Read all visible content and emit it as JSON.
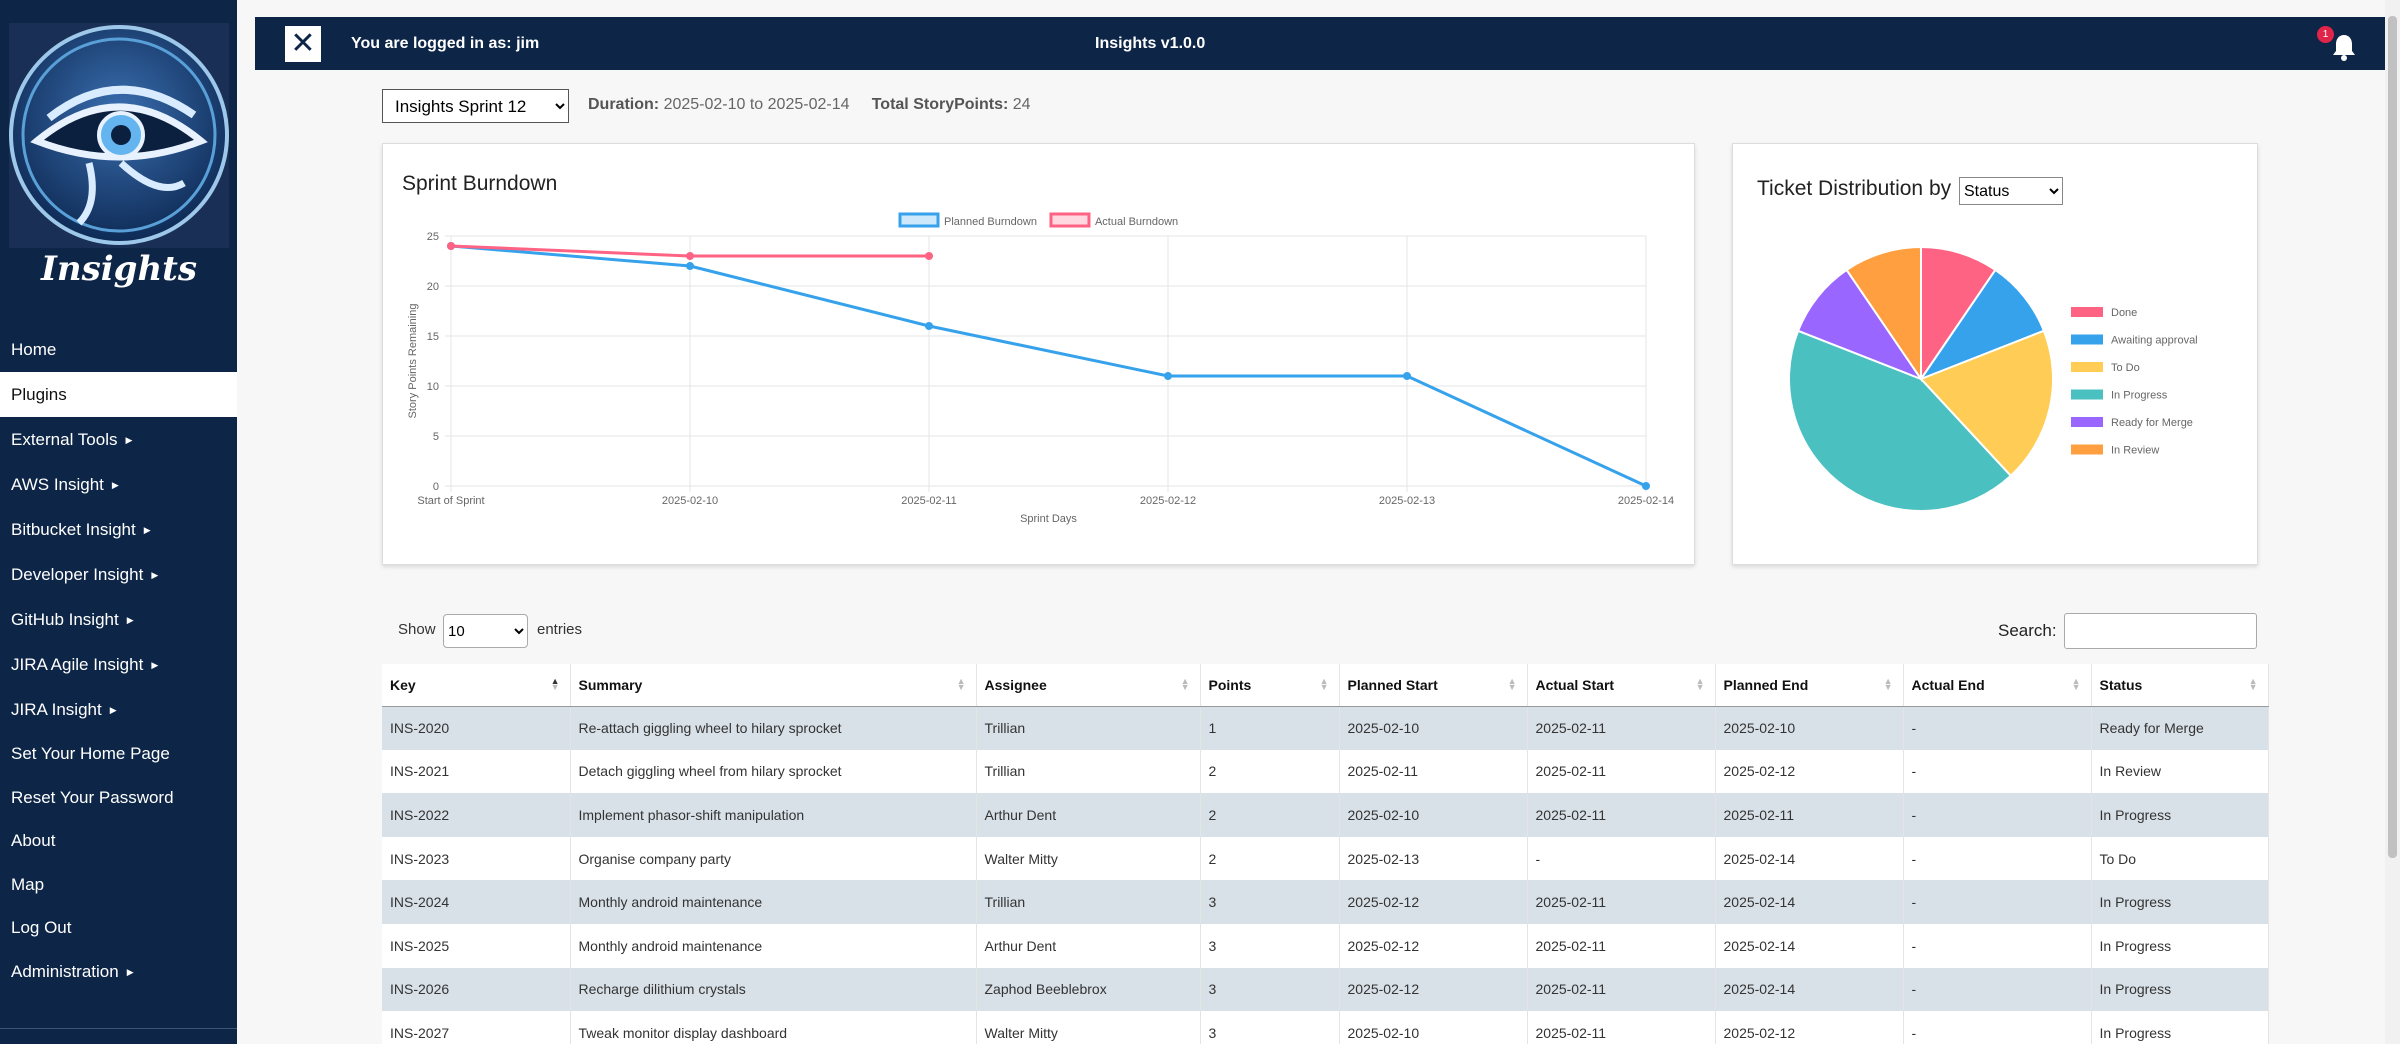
{
  "header": {
    "logged_in_text": "You are logged in as: jim",
    "app_title": "Insights v1.0.0",
    "notification_count": "1"
  },
  "sidebar": {
    "logo_text": "Insights",
    "items": [
      {
        "label": "Home",
        "submenu": false,
        "active": false
      },
      {
        "label": "Plugins",
        "submenu": false,
        "active": true
      },
      {
        "label": "External Tools",
        "submenu": true,
        "active": false
      },
      {
        "label": "AWS Insight",
        "submenu": true,
        "active": false
      },
      {
        "label": "Bitbucket Insight",
        "submenu": true,
        "active": false
      },
      {
        "label": "Developer Insight",
        "submenu": true,
        "active": false
      },
      {
        "label": "GitHub Insight",
        "submenu": true,
        "active": false
      },
      {
        "label": "JIRA Agile Insight",
        "submenu": true,
        "active": false
      },
      {
        "label": "JIRA Insight",
        "submenu": true,
        "active": false
      },
      {
        "label": "Set Your Home Page",
        "submenu": false,
        "active": false
      },
      {
        "label": "Reset Your Password",
        "submenu": false,
        "active": false
      },
      {
        "label": "About",
        "submenu": false,
        "active": false
      },
      {
        "label": "Map",
        "submenu": false,
        "active": false
      },
      {
        "label": "Log Out",
        "submenu": false,
        "active": false
      },
      {
        "label": "Administration",
        "submenu": true,
        "active": false
      }
    ]
  },
  "sprint": {
    "selected": "Insights Sprint 12",
    "duration_label": "Duration:",
    "duration_value": "2025-02-10 to 2025-02-14",
    "points_label": "Total StoryPoints:",
    "points_value": "24"
  },
  "burndown": {
    "title": "Sprint Burndown",
    "chart_data": {
      "type": "line",
      "x": [
        "Start of Sprint",
        "2025-02-10",
        "2025-02-11",
        "2025-02-12",
        "2025-02-13",
        "2025-02-14"
      ],
      "series": [
        {
          "name": "Planned Burndown",
          "color": "#36a2eb",
          "values": [
            24,
            22,
            16,
            11,
            11,
            0
          ]
        },
        {
          "name": "Actual Burndown",
          "color": "#ff6384",
          "values": [
            24,
            23,
            23,
            null,
            null,
            null
          ]
        }
      ],
      "xlabel": "Sprint Days",
      "ylabel": "Story Points Remaining",
      "ylim": [
        0,
        25
      ],
      "yticks": [
        0,
        5,
        10,
        15,
        20,
        25
      ],
      "grid": true,
      "legend": "top"
    }
  },
  "distribution": {
    "title": "Ticket Distribution by",
    "group_by": "Status",
    "chart_data": {
      "type": "pie",
      "categories": [
        "Done",
        "Awaiting approval",
        "To Do",
        "In Progress",
        "Ready for Merge",
        "In Review"
      ],
      "values": [
        2,
        2,
        4,
        9,
        2,
        2
      ],
      "colors": [
        "#ff6384",
        "#36a2eb",
        "#ffcd56",
        "#4bc0c0",
        "#9966ff",
        "#ff9f40"
      ],
      "legend": "right"
    }
  },
  "table_controls": {
    "show_label": "Show",
    "entries_value": "10",
    "entries_label": "entries",
    "search_label": "Search:"
  },
  "table": {
    "columns": [
      "Key",
      "Summary",
      "Assignee",
      "Points",
      "Planned Start",
      "Actual Start",
      "Planned End",
      "Actual End",
      "Status"
    ],
    "rows": [
      [
        "INS-2020",
        "Re-attach giggling wheel to hilary sprocket",
        "Trillian",
        "1",
        "2025-02-10",
        "2025-02-11",
        "2025-02-10",
        "-",
        "Ready for Merge"
      ],
      [
        "INS-2021",
        "Detach giggling wheel from hilary sprocket",
        "Trillian",
        "2",
        "2025-02-11",
        "2025-02-11",
        "2025-02-12",
        "-",
        "In Review"
      ],
      [
        "INS-2022",
        "Implement phasor-shift manipulation",
        "Arthur Dent",
        "2",
        "2025-02-10",
        "2025-02-11",
        "2025-02-11",
        "-",
        "In Progress"
      ],
      [
        "INS-2023",
        "Organise company party",
        "Walter Mitty",
        "2",
        "2025-02-13",
        "-",
        "2025-02-14",
        "-",
        "To Do"
      ],
      [
        "INS-2024",
        "Monthly android maintenance",
        "Trillian",
        "3",
        "2025-02-12",
        "2025-02-11",
        "2025-02-14",
        "-",
        "In Progress"
      ],
      [
        "INS-2025",
        "Monthly android maintenance",
        "Arthur Dent",
        "3",
        "2025-02-12",
        "2025-02-11",
        "2025-02-14",
        "-",
        "In Progress"
      ],
      [
        "INS-2026",
        "Recharge dilithium crystals",
        "Zaphod Beeblebrox",
        "3",
        "2025-02-12",
        "2025-02-11",
        "2025-02-14",
        "-",
        "In Progress"
      ],
      [
        "INS-2027",
        "Tweak monitor display dashboard",
        "Walter Mitty",
        "3",
        "2025-02-10",
        "2025-02-11",
        "2025-02-12",
        "-",
        "In Progress"
      ]
    ]
  }
}
